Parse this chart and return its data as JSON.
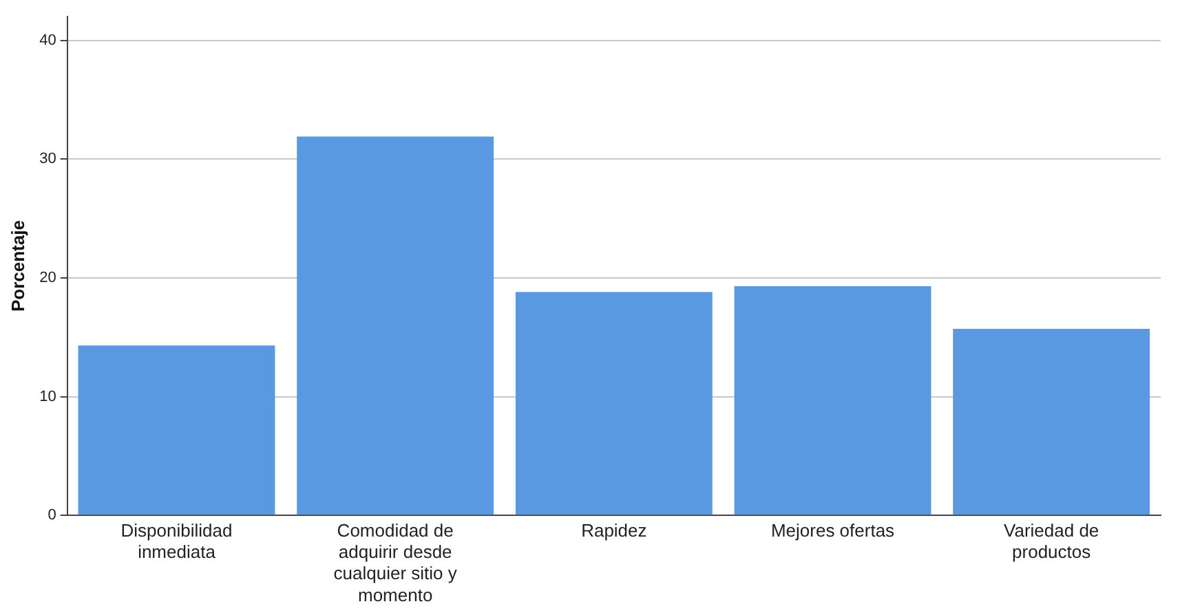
{
  "chart_data": {
    "type": "bar",
    "ylabel": "Porcentaje",
    "categories": [
      "Disponibilidad inmediata",
      "Comodidad de adquirir desde cualquier sitio y momento",
      "Rapidez",
      "Mejores ofertas",
      "Variedad de productos"
    ],
    "values": [
      14.3,
      31.9,
      18.8,
      19.3,
      15.7
    ],
    "color": "#5899e2",
    "ylim": [
      0,
      42
    ],
    "yticks": [
      0,
      10,
      20,
      30,
      40
    ],
    "grid": "y",
    "legend": false
  }
}
